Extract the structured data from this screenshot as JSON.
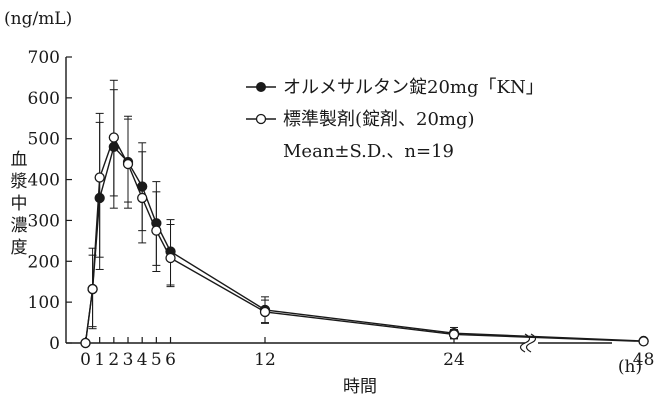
{
  "chart_data": {
    "type": "line",
    "y_unit_label": "(ng/mL)",
    "ylabel": "血漿中濃度",
    "xlabel": "時間",
    "x_unit_label": "(h)",
    "ylim": [
      0,
      700
    ],
    "y_ticks": [
      0,
      100,
      200,
      300,
      400,
      500,
      600,
      700
    ],
    "x_ticks": [
      "0",
      "1",
      "2",
      "3",
      "4",
      "5",
      "6",
      "12",
      "24",
      "48"
    ],
    "x_axis_break": "between 24 and 48",
    "series": [
      {
        "name": "オルメサルタン錠20mg「KN」",
        "marker": "filled-circle",
        "x": [
          0,
          0.5,
          1,
          2,
          3,
          4,
          5,
          6,
          12,
          24,
          48
        ],
        "y": [
          0,
          132,
          355,
          480,
          443,
          383,
          293,
          224,
          81,
          24,
          5
        ],
        "sd_upper": [
          0,
          232,
          562,
          620,
          555,
          490,
          395,
          302,
          113,
          38,
          7
        ],
        "sd_lower": [
          0,
          35,
          180,
          330,
          345,
          275,
          190,
          142,
          50,
          12,
          3
        ]
      },
      {
        "name": "標準製剤(錠剤、20mg)",
        "marker": "open-circle",
        "x": [
          0,
          0.5,
          1,
          2,
          3,
          4,
          5,
          6,
          12,
          24,
          48
        ],
        "y": [
          0,
          132,
          405,
          503,
          438,
          355,
          275,
          208,
          76,
          21,
          4
        ],
        "sd_upper": [
          0,
          215,
          540,
          643,
          548,
          468,
          370,
          290,
          105,
          33,
          6
        ],
        "sd_lower": [
          0,
          40,
          210,
          360,
          330,
          245,
          175,
          138,
          48,
          10,
          2
        ]
      }
    ],
    "legend_note": "Mean±S.D.、n=19",
    "legend_position": "top-right",
    "grid": false,
    "colors": {
      "line": "#1a1a1a",
      "background": "#ffffff"
    }
  }
}
